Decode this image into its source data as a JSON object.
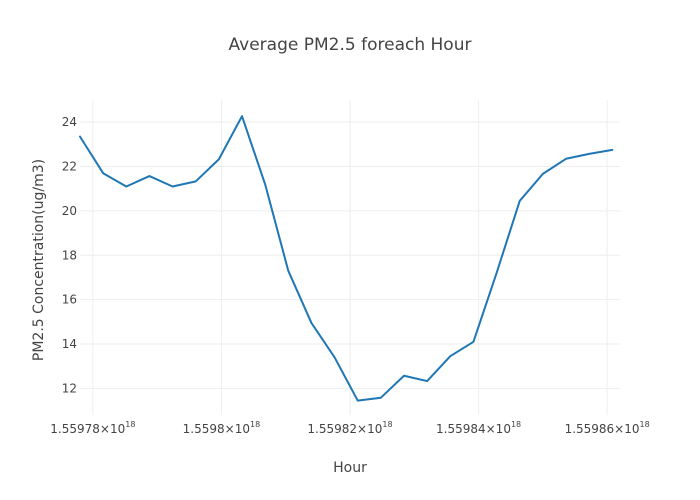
{
  "chart_data": {
    "type": "line",
    "title": "Average PM2.5 foreach Hour",
    "xlabel": "Hour",
    "ylabel": "PM2.5 Concentration(ug/m3)",
    "xlim": [
      1559778000000000000,
      1559862000000000000
    ],
    "ylim": [
      10.8,
      25
    ],
    "grid": true,
    "x_ticks": [
      {
        "value": 1559780000000000000,
        "mantissa": "1.55978",
        "exponent": "18"
      },
      {
        "value": 1559800000000000000,
        "mantissa": "1.5598",
        "exponent": "18"
      },
      {
        "value": 1559820000000000000,
        "mantissa": "1.55982",
        "exponent": "18"
      },
      {
        "value": 1559840000000000000,
        "mantissa": "1.55984",
        "exponent": "18"
      },
      {
        "value": 1559860000000000000,
        "mantissa": "1.55986",
        "exponent": "18"
      }
    ],
    "y_ticks": [
      12,
      14,
      16,
      18,
      20,
      22,
      24
    ],
    "series": [
      {
        "color": "#1f77b4",
        "x": [
          1559778000000000000,
          1559781600000000000,
          1559785200000000000,
          1559788800000000000,
          1559792400000000000,
          1559796000000000000,
          1559799600000000000,
          1559803200000000000,
          1559806800000000000,
          1559810400000000000,
          1559814000000000000,
          1559817600000000000,
          1559821200000000000,
          1559824800000000000,
          1559828400000000000,
          1559832000000000000,
          1559835600000000000,
          1559839200000000000,
          1559842800000000000,
          1559846400000000000,
          1559850000000000000,
          1559853600000000000,
          1559857200000000000,
          1559860800000000000
        ],
        "y": [
          23.35,
          21.7,
          21.1,
          21.57,
          21.1,
          21.33,
          22.33,
          24.27,
          21.2,
          17.3,
          14.95,
          13.4,
          11.45,
          11.58,
          12.57,
          12.33,
          13.45,
          14.1,
          17.2,
          20.45,
          21.67,
          22.35,
          22.57,
          22.75
        ]
      }
    ]
  }
}
